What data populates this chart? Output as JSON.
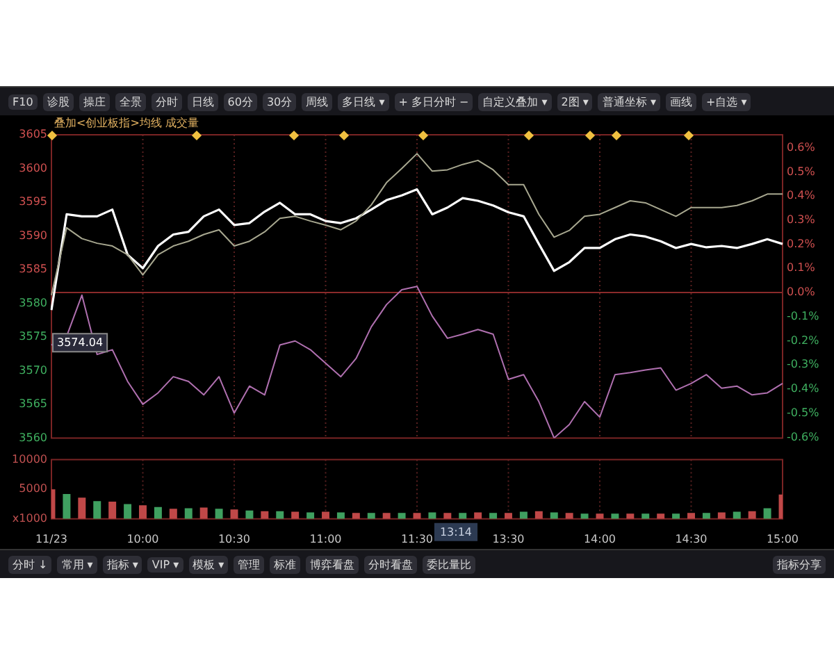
{
  "chart_data": [
    {
      "type": "other",
      "annotations": [
        "F10",
        "诊股",
        "操庄",
        "全景",
        "分时",
        "日线",
        "60分",
        "30分",
        "周线",
        "多日线 ▾",
        "+ 多日分时 −",
        "自定义叠加 ▾",
        "2图 ▾",
        "普通坐标 ▾",
        "画线",
        "+自选 ▾"
      ]
    },
    {
      "type": "line",
      "title": "叠加<创业板指>均线 成交量",
      "categories": [
        null,
        null,
        null,
        null,
        null,
        null,
        null,
        null,
        null,
        null,
        null,
        null,
        null,
        null,
        null,
        null,
        null,
        null,
        null,
        null,
        null,
        null,
        null,
        null,
        null,
        null,
        null,
        null,
        null,
        null,
        null,
        null,
        null,
        null,
        null,
        null,
        null,
        null,
        null,
        null,
        null,
        null,
        null,
        null,
        null,
        null,
        null,
        null,
        null
      ],
      "series": [
        {
          "color": "#a8a890",
          "values": [
            3581.2,
            3591.2,
            3589.6,
            3588.9,
            3588.5,
            3587.2,
            3584.2,
            3587.2,
            3588.5,
            3589.2,
            3590.2,
            3590.9,
            3588.5,
            3589.2,
            3590.6,
            3592.6,
            3592.9,
            3592.2,
            3591.6,
            3590.9,
            3592.2,
            3594.6,
            3597.9,
            3600,
            3602.2,
            3599.6,
            3599.8,
            3600.6,
            3601.2,
            3599.8,
            3597.6,
            3597.6,
            3593.2,
            3589.8,
            3590.8,
            3592.9,
            3593.2,
            3594.2,
            3595.2,
            3594.9,
            3593.9,
            3592.9,
            3594.2,
            3594.2,
            3594.2,
            3594.5,
            3595.2,
            3596.2,
            3596.2
          ]
        },
        {
          "color": "#ffffff",
          "values": [
            3579,
            3593.2,
            3592.9,
            3592.9,
            3593.9,
            3587.2,
            3585.2,
            3588.5,
            3590.2,
            3590.6,
            3592.9,
            3593.9,
            3591.6,
            3591.9,
            3593.6,
            3594.9,
            3593.2,
            3593.2,
            3592.2,
            3591.9,
            3592.6,
            3593.9,
            3595.3,
            3596,
            3596.9,
            3593.2,
            3594.2,
            3595.6,
            3595.2,
            3594.5,
            3593.5,
            3592.9,
            3588.8,
            3584.8,
            3586.1,
            3588.2,
            3588.2,
            3589.5,
            3590.2,
            3589.9,
            3589.2,
            3588.2,
            3588.8,
            3588.3,
            3588.5,
            3588.2,
            3588.8,
            3589.5,
            3588.8
          ]
        },
        {
          "color": "#b070b0",
          "values": [
            3573.8,
            3575.1,
            3581.2,
            3572.4,
            3573.1,
            3568.4,
            3565,
            3566.7,
            3569.1,
            3568.4,
            3566.4,
            3569.1,
            3563.7,
            3567.7,
            3566.4,
            3573.8,
            3574.4,
            3573.1,
            3571.1,
            3569.1,
            3571.8,
            3576.5,
            3579.8,
            3582,
            3582.5,
            3578.1,
            3574.8,
            3575.4,
            3576.1,
            3575.4,
            3568.7,
            3569.4,
            3565.4,
            3560,
            3562,
            3565.4,
            3563.1,
            3569.4,
            3569.7,
            3570.1,
            3570.4,
            3567.1,
            3568.1,
            3569.4,
            3567.4,
            3567.7,
            3566.4,
            3566.7,
            3568.1
          ]
        }
      ],
      "ylim": [
        3560,
        3605
      ],
      "yticks": [
        3560,
        3565,
        3570,
        3575,
        3580,
        3585,
        3590,
        3595,
        3600,
        3605
      ],
      "y2lim": [
        -0.603,
        0.654
      ],
      "y2ticks": [
        {
          "value": -0.6,
          "label": "-0.6%"
        },
        {
          "value": -0.5,
          "label": "-0.5%"
        },
        {
          "value": -0.4,
          "label": "-0.4%"
        },
        {
          "value": -0.3,
          "label": "-0.3%"
        },
        {
          "value": -0.2,
          "label": "-0.2%"
        },
        {
          "value": -0.1,
          "label": "-0.1%"
        },
        {
          "value": 0,
          "label": "0.0%"
        },
        {
          "value": 0.1,
          "label": "0.1%"
        },
        {
          "value": 0.2,
          "label": "0.2%"
        },
        {
          "value": 0.3,
          "label": "0.3%"
        },
        {
          "value": 0.4,
          "label": "0.4%"
        },
        {
          "value": 0.5,
          "label": "0.5%"
        },
        {
          "value": 0.6,
          "label": "0.6%"
        }
      ],
      "ref_lines": [
        {
          "axis": "y2",
          "value": 0,
          "color": "#8a2a2a"
        }
      ],
      "annotations": [
        {
          "text": "3574.04",
          "y": 3574.04
        }
      ],
      "grid": "x",
      "tick_labels": "y",
      "marker": "none",
      "line_style": "solid"
    },
    {
      "type": "bar",
      "categories": [
        "11/23",
        null,
        null,
        null,
        null,
        null,
        "10:00",
        null,
        null,
        null,
        null,
        null,
        "10:30",
        null,
        null,
        null,
        null,
        null,
        "11:00",
        null,
        null,
        null,
        null,
        null,
        "11:30",
        null,
        null,
        null,
        null,
        null,
        "13:30",
        null,
        null,
        null,
        null,
        null,
        "14:00",
        null,
        null,
        null,
        null,
        null,
        "14:30",
        null,
        null,
        null,
        null,
        null,
        "15:00"
      ],
      "values": [
        5000,
        4200,
        3600,
        3000,
        2900,
        2500,
        2300,
        2000,
        1700,
        1800,
        1900,
        1700,
        1600,
        1400,
        1300,
        1300,
        1200,
        1100,
        1200,
        1100,
        1000,
        1000,
        1000,
        1000,
        1000,
        1100,
        1000,
        1000,
        1100,
        1000,
        1000,
        1200,
        1300,
        1100,
        1000,
        900,
        900,
        900,
        900,
        900,
        900,
        900,
        1000,
        1000,
        1100,
        1200,
        1300,
        1800,
        4100
      ],
      "colors": [
        "#c04848",
        "#3fa060",
        "#c04848",
        "#3fa060",
        "#c04848",
        "#3fa060",
        "#c04848",
        "#3fa060",
        "#c04848",
        "#3fa060",
        "#c04848",
        "#3fa060",
        "#c04848",
        "#3fa060",
        "#c04848",
        "#3fa060",
        "#c04848",
        "#3fa060",
        "#c04848",
        "#3fa060",
        "#c04848",
        "#3fa060",
        "#c04848",
        "#3fa060",
        "#c04848",
        "#3fa060",
        "#c04848",
        "#3fa060",
        "#c04848",
        "#3fa060",
        "#c04848",
        "#3fa060",
        "#c04848",
        "#3fa060",
        "#c04848",
        "#3fa060",
        "#c04848",
        "#3fa060",
        "#c04848",
        "#3fa060",
        "#c04848",
        "#3fa060",
        "#c04848",
        "#3fa060",
        "#c04848",
        "#3fa060",
        "#c04848",
        "#3fa060",
        "#c04848"
      ],
      "ylim": [
        0,
        10000
      ],
      "yticks": [
        {
          "value": 0,
          "label": "x1000"
        },
        5000,
        10000
      ],
      "annotations": [
        "13:14"
      ],
      "grid": "x"
    },
    {
      "type": "other",
      "annotations": [
        "分时 ↓",
        "常用 ▾",
        "指标 ▾",
        "VIP ▾",
        "模板 ▾",
        "管理",
        "标准",
        "博弈看盘",
        "分时看盘",
        "委比量比",
        "指标分享"
      ]
    }
  ]
}
